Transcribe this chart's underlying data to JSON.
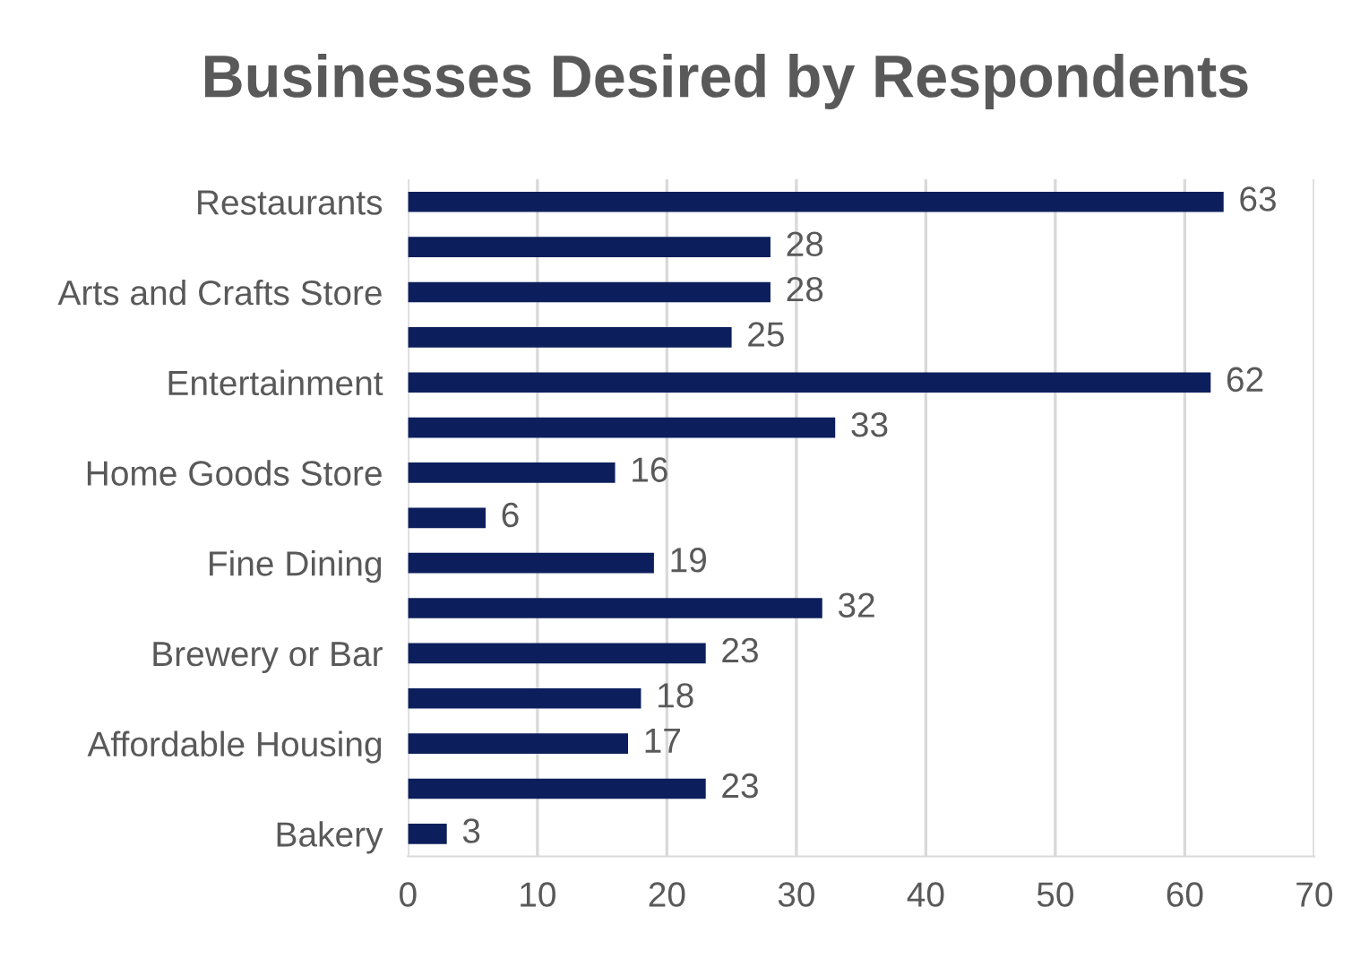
{
  "chart_data": {
    "type": "bar",
    "orientation": "horizontal",
    "title": "Businesses Desired by Respondents",
    "categories": [
      "Restaurants",
      null,
      "Arts and Crafts Store",
      null,
      "Entertainment",
      null,
      "Home Goods Store",
      null,
      "Fine Dining",
      null,
      "Brewery or Bar",
      null,
      "Affordable Housing",
      null,
      "Bakery"
    ],
    "values": [
      63,
      28,
      28,
      25,
      62,
      33,
      16,
      6,
      19,
      32,
      23,
      18,
      17,
      23,
      3
    ],
    "color": "#0c1f5c",
    "xlim": [
      0,
      70
    ],
    "xticks": [
      0,
      10,
      20,
      30,
      40,
      50,
      60,
      70
    ],
    "grid": "x",
    "data_labels": true
  }
}
